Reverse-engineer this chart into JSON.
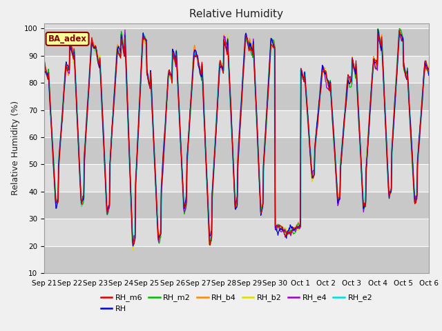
{
  "title": "Relative Humidity",
  "ylabel": "Relative Humidity (%)",
  "ylim": [
    10,
    102
  ],
  "yticks": [
    10,
    20,
    30,
    40,
    50,
    60,
    70,
    80,
    90,
    100
  ],
  "x_labels": [
    "Sep 21",
    "Sep 22",
    "Sep 23",
    "Sep 24",
    "Sep 25",
    "Sep 26",
    "Sep 27",
    "Sep 28",
    "Sep 29",
    "Sep 30",
    "Oct 1",
    "Oct 2",
    "Oct 3",
    "Oct 4",
    "Oct 5",
    "Oct 6"
  ],
  "annotation_text": "BA_adex",
  "series_colors": {
    "RH_m6": "#dd0000",
    "RH": "#0000dd",
    "RH_m2": "#00bb00",
    "RH_b4": "#ff8800",
    "RH_b2": "#dddd00",
    "RH_e4": "#9900cc",
    "RH_e2": "#00dddd"
  },
  "series_order": [
    "RH_e2",
    "RH_b2",
    "RH_b4",
    "RH_m2",
    "RH_e4",
    "RH",
    "RH_m6"
  ],
  "legend_order": [
    "RH_m6",
    "RH",
    "RH_m2",
    "RH_b4",
    "RH_b2",
    "RH_e4",
    "RH_e2"
  ],
  "plot_bg": "#dcdcdc",
  "fig_bg": "#f0f0f0",
  "grid_color": "#ffffff",
  "title_fontsize": 11,
  "label_fontsize": 9,
  "tick_fontsize": 7.5
}
